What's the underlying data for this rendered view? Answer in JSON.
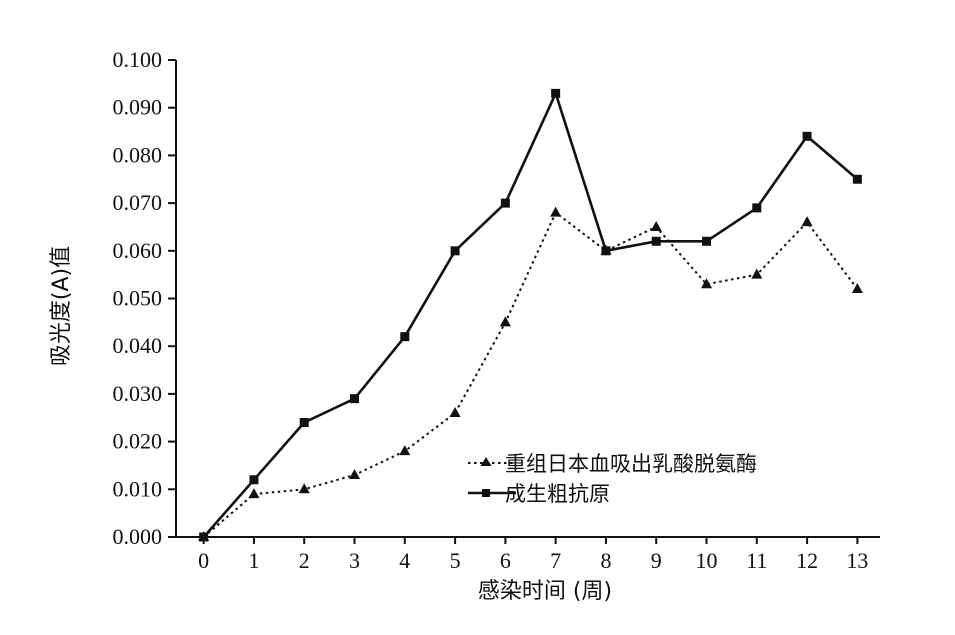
{
  "chart_data": {
    "type": "line",
    "xlabel": "感染时间 (周)",
    "ylabel": "吸光度(A)值",
    "x": [
      0,
      1,
      2,
      3,
      4,
      5,
      6,
      7,
      8,
      9,
      10,
      11,
      12,
      13
    ],
    "x_ticks": [
      "0",
      "1",
      "2",
      "3",
      "4",
      "5",
      "6",
      "7",
      "8",
      "9",
      "10",
      "11",
      "12",
      "13"
    ],
    "y_ticks": [
      "0.000",
      "0.010",
      "0.020",
      "0.030",
      "0.040",
      "0.050",
      "0.060",
      "0.070",
      "0.080",
      "0.090",
      "0.100"
    ],
    "xlim": [
      -0.55,
      13.45
    ],
    "ylim": [
      0,
      0.1
    ],
    "grid": false,
    "legend_position": "bottom-right",
    "series": [
      {
        "name": "重组日本血吸出乳酸脱氨酶",
        "marker": "triangle",
        "line_style": "dotted",
        "values": [
          0.0,
          0.009,
          0.01,
          0.013,
          0.018,
          0.026,
          0.045,
          0.068,
          0.06,
          0.065,
          0.053,
          0.055,
          0.066,
          0.052
        ]
      },
      {
        "name": "成生粗抗原",
        "marker": "square",
        "line_style": "solid",
        "values": [
          0.0,
          0.012,
          0.024,
          0.029,
          0.042,
          0.06,
          0.07,
          0.093,
          0.06,
          0.062,
          0.062,
          0.069,
          0.084,
          0.075
        ]
      }
    ],
    "colors": {
      "line": "#111111"
    }
  }
}
